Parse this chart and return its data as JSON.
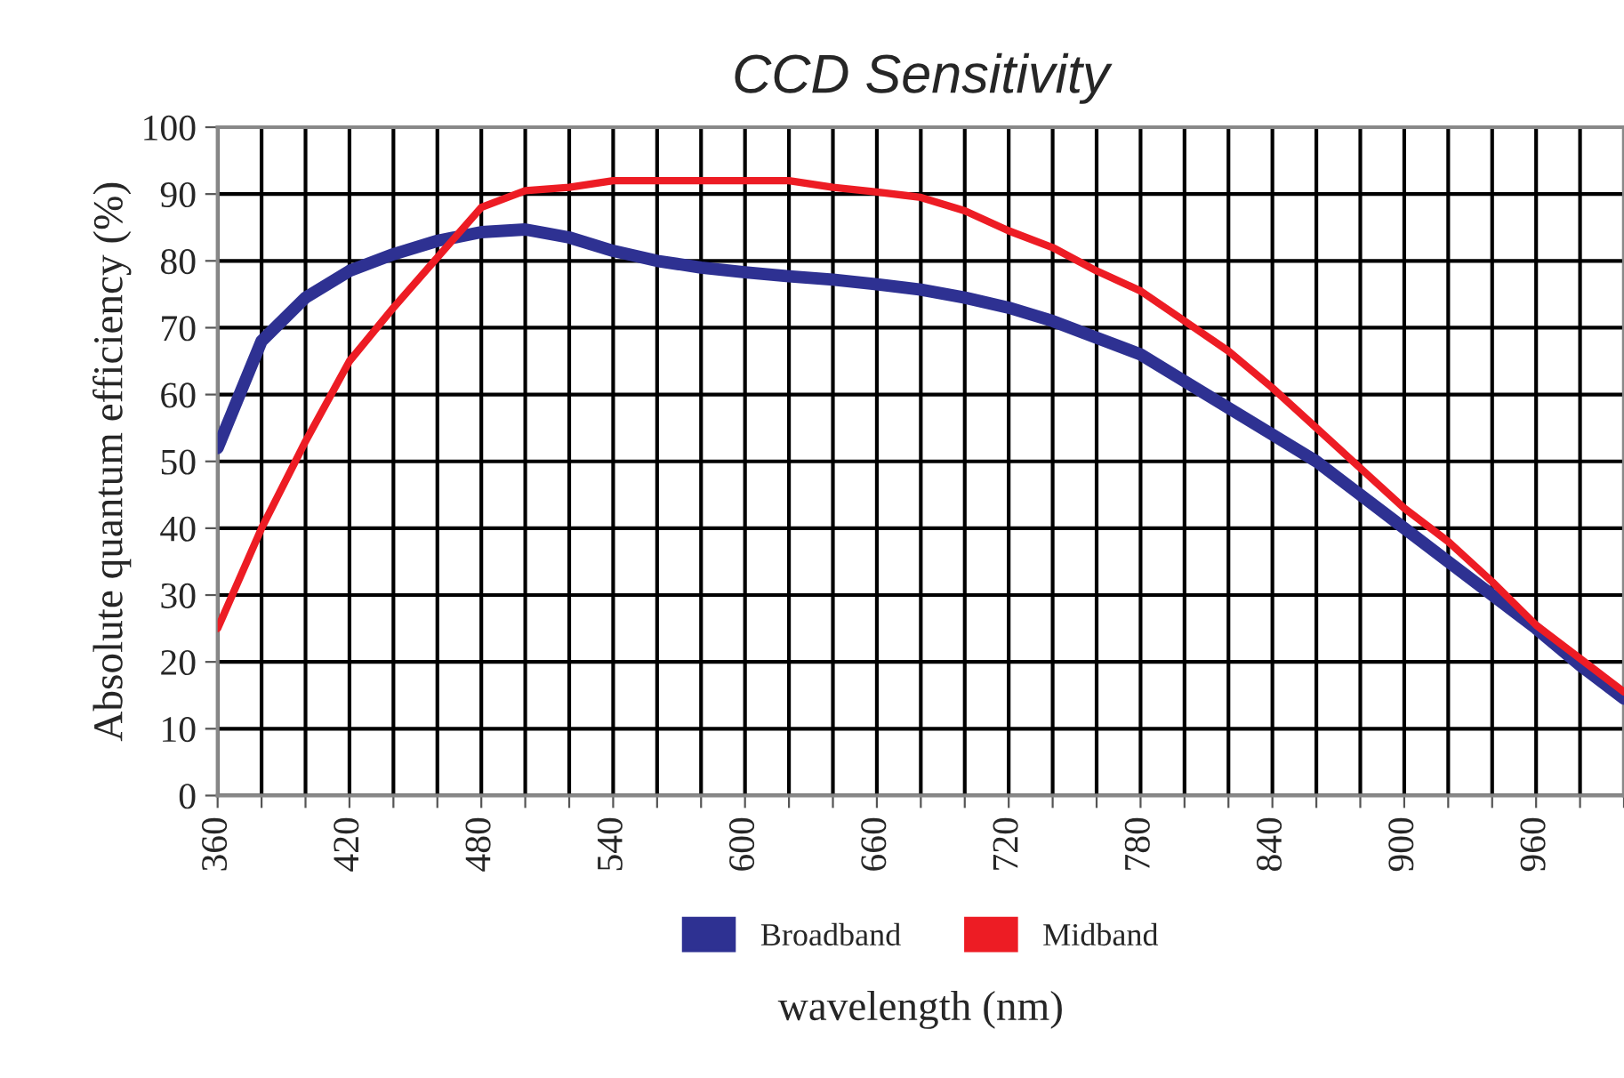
{
  "chart_data": {
    "type": "line",
    "title": "CCD Sensitivity",
    "xlabel": "wavelength (nm)",
    "ylabel": "Absolute quantum efficiency (%)",
    "x": [
      360,
      380,
      400,
      420,
      440,
      460,
      480,
      500,
      520,
      540,
      560,
      580,
      600,
      620,
      640,
      660,
      680,
      700,
      720,
      740,
      760,
      780,
      800,
      820,
      840,
      860,
      880,
      900,
      920,
      940,
      960,
      980,
      1000
    ],
    "series": [
      {
        "name": "Broadband",
        "color": "#2e3192",
        "values": [
          52,
          68,
          74.5,
          78.5,
          81,
          83,
          84.3,
          84.7,
          83.5,
          81.5,
          80,
          79,
          78.3,
          77.7,
          77.2,
          76.5,
          75.7,
          74.5,
          73,
          71,
          68.5,
          66,
          62,
          58,
          54,
          50,
          45,
          40,
          35,
          30,
          25,
          19.5,
          14.5
        ]
      },
      {
        "name": "Midband",
        "color": "#ed1c24",
        "values": [
          25,
          40,
          53,
          65,
          73,
          80.5,
          88,
          90.5,
          91,
          92,
          92,
          92,
          92,
          92,
          91,
          90.3,
          89.5,
          87.5,
          84.5,
          82,
          78.5,
          75.5,
          71,
          66.5,
          61,
          55,
          49,
          43,
          38,
          32,
          25.5,
          20.5,
          15.5
        ]
      }
    ],
    "xlim": [
      360,
      1000
    ],
    "xticks": [
      360,
      {
        "value": 380,
        "label": null
      },
      {
        "value": 400,
        "label": null
      },
      420,
      {
        "value": 440,
        "label": null
      },
      {
        "value": 460,
        "label": null
      },
      480,
      {
        "value": 500,
        "label": null
      },
      {
        "value": 520,
        "label": null
      },
      540,
      {
        "value": 560,
        "label": null
      },
      {
        "value": 580,
        "label": null
      },
      600,
      {
        "value": 620,
        "label": null
      },
      {
        "value": 640,
        "label": null
      },
      660,
      {
        "value": 680,
        "label": null
      },
      {
        "value": 700,
        "label": null
      },
      720,
      {
        "value": 740,
        "label": null
      },
      {
        "value": 760,
        "label": null
      },
      780,
      {
        "value": 800,
        "label": null
      },
      {
        "value": 820,
        "label": null
      },
      840,
      {
        "value": 860,
        "label": null
      },
      {
        "value": 880,
        "label": null
      },
      900,
      {
        "value": 920,
        "label": null
      },
      {
        "value": 940,
        "label": null
      },
      960,
      {
        "value": 980,
        "label": null
      },
      {
        "value": 1000,
        "label": null
      }
    ],
    "ylim": [
      0,
      100
    ],
    "yticks": [
      0,
      10,
      20,
      30,
      40,
      50,
      60,
      70,
      80,
      90,
      100
    ],
    "grid": true,
    "legend": "bottom",
    "marker": "none",
    "line_style": "solid"
  }
}
